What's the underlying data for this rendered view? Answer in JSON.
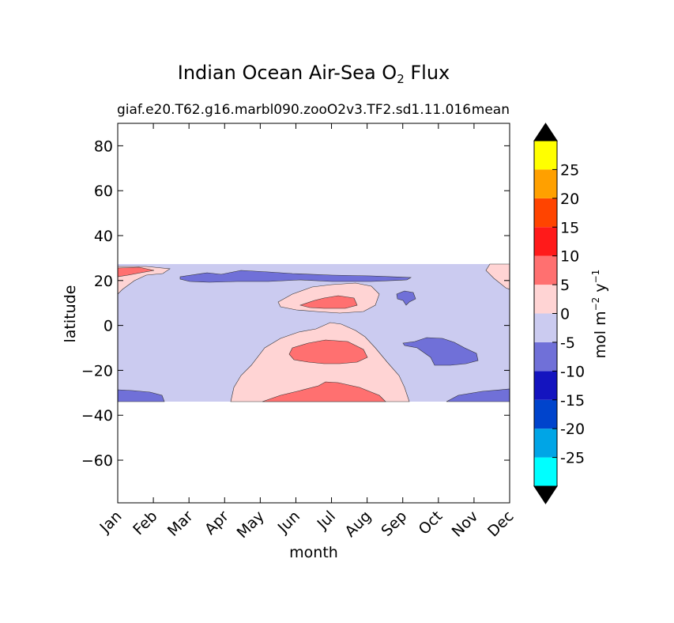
{
  "chart_data": {
    "type": "heatmap",
    "title": "Indian Ocean Air-Sea O",
    "title_subscript": "2",
    "title_suffix": " Flux",
    "subtitle_left": "giaf.e20.T62.g16.marbl090.zooO2v3.TF2.sd1.11.016",
    "subtitle_right": "mean",
    "xlabel": "month",
    "ylabel": "latitude",
    "x_ticks": [
      "Jan",
      "Feb",
      "Mar",
      "Apr",
      "May",
      "Jun",
      "Jul",
      "Aug",
      "Sep",
      "Oct",
      "Nov",
      "Dec"
    ],
    "y_ticks": [
      80,
      60,
      40,
      20,
      0,
      -20,
      -40,
      -60
    ],
    "ylim": [
      -79,
      90
    ],
    "data_lat_range": [
      -34,
      27
    ],
    "grid": false,
    "colorbar": {
      "label_main": "mol m",
      "label_exp1": "−2",
      "label_mid": "  y",
      "label_exp2": "−1",
      "ticks": [
        25,
        20,
        15,
        10,
        5,
        0,
        -5,
        -10,
        -15,
        -20,
        -25
      ],
      "levels": [
        -30,
        -25,
        -20,
        -15,
        -10,
        -5,
        0,
        5,
        10,
        15,
        20,
        25,
        30
      ],
      "colors": [
        "#00ffff",
        "#00a5e6",
        "#0044cc",
        "#1414bf",
        "#7070d8",
        "#cbcbf0",
        "#ffd4d4",
        "#ff7070",
        "#ff1a1a",
        "#ff4400",
        "#ffa000",
        "#ffff00"
      ],
      "extend_colors": [
        "#000000",
        "#000000"
      ]
    },
    "regions": [
      {
        "name": "background",
        "value_band": "-5 to 0",
        "color": "#cbcbf0"
      },
      {
        "name": "north-band-negative",
        "value_band": "-10 to -5",
        "color": "#7070d8"
      },
      {
        "name": "east-negative-patch",
        "value_band": "-10 to -5",
        "color": "#7070d8"
      },
      {
        "name": "sep-negative-spot",
        "value_band": "-10 to -5",
        "color": "#7070d8"
      },
      {
        "name": "south-edge-negative",
        "value_band": "-10 to -5",
        "color": "#7070d8"
      },
      {
        "name": "winter-plume-positive",
        "value_band": "0 to 5",
        "color": "#ffd4d4"
      },
      {
        "name": "july-north-positive",
        "value_band": "0 to 5",
        "color": "#ffd4d4"
      },
      {
        "name": "jan-north-positive",
        "value_band": "0 to 5",
        "color": "#ffd4d4"
      },
      {
        "name": "dec-north-positive",
        "value_band": "0 to 5",
        "color": "#ffd4d4"
      },
      {
        "name": "core-positive",
        "value_band": "5 to 10",
        "color": "#ff7070"
      }
    ]
  }
}
